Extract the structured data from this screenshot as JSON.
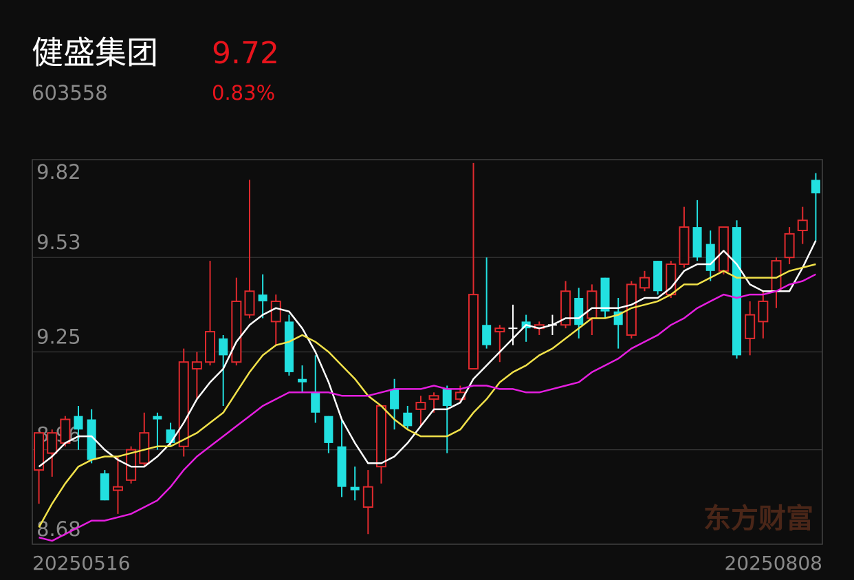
{
  "header": {
    "name": "健盛集团",
    "code": "603558",
    "price": "9.72",
    "change": "0.83%"
  },
  "chart_data": {
    "type": "candlestick",
    "categories": [
      "20250516",
      null,
      null,
      null,
      null,
      null,
      null,
      null,
      null,
      null,
      null,
      null,
      null,
      null,
      null,
      null,
      null,
      null,
      null,
      null,
      null,
      null,
      null,
      null,
      null,
      null,
      null,
      null,
      null,
      null,
      null,
      null,
      null,
      null,
      null,
      null,
      null,
      null,
      null,
      null,
      null,
      null,
      null,
      null,
      null,
      null,
      null,
      null,
      null,
      null,
      null,
      null,
      null,
      null,
      null,
      null,
      null,
      null,
      null,
      "20250808"
    ],
    "open": [
      8.9,
      8.95,
      8.98,
      9.06,
      9.05,
      8.89,
      8.84,
      8.87,
      8.92,
      9.06,
      9.02,
      8.97,
      9.2,
      9.22,
      9.29,
      9.22,
      9.36,
      9.42,
      9.34,
      9.34,
      9.17,
      9.13,
      9.06,
      8.97,
      8.85,
      8.79,
      8.91,
      9.14,
      9.07,
      9.08,
      9.11,
      9.14,
      9.11,
      9.2,
      9.33,
      9.31,
      9.32,
      9.34,
      9.32,
      9.33,
      9.33,
      9.41,
      9.35,
      9.47,
      9.37,
      9.3,
      9.44,
      9.52,
      9.42,
      9.51,
      9.62,
      9.57,
      9.49,
      9.62,
      9.29,
      9.34,
      9.43,
      9.53,
      9.61,
      9.76
    ],
    "high": [
      9.01,
      9.02,
      9.06,
      9.09,
      9.08,
      8.9,
      8.94,
      8.97,
      9.07,
      9.07,
      9.04,
      9.26,
      9.25,
      9.52,
      9.3,
      9.47,
      9.76,
      9.48,
      9.42,
      9.36,
      9.21,
      9.24,
      9.06,
      9.05,
      8.91,
      8.9,
      9.09,
      9.17,
      9.09,
      9.12,
      9.13,
      9.15,
      9.15,
      9.81,
      9.53,
      9.33,
      9.39,
      9.36,
      9.34,
      9.36,
      9.46,
      9.44,
      9.45,
      9.47,
      9.41,
      9.46,
      9.49,
      9.52,
      9.52,
      9.68,
      9.7,
      9.61,
      9.62,
      9.64,
      9.4,
      9.43,
      9.53,
      9.62,
      9.68,
      9.78
    ],
    "low": [
      8.8,
      8.88,
      8.97,
      8.96,
      8.92,
      8.81,
      8.77,
      8.86,
      8.91,
      8.96,
      8.97,
      8.94,
      9.11,
      9.21,
      9.09,
      9.21,
      9.35,
      9.35,
      9.27,
      9.18,
      9.13,
      9.04,
      8.95,
      8.82,
      8.81,
      8.71,
      8.86,
      9.02,
      9.02,
      9.03,
      9.07,
      8.95,
      9.1,
      9.2,
      9.26,
      9.22,
      9.27,
      9.28,
      9.3,
      9.3,
      9.32,
      9.29,
      9.3,
      9.35,
      9.26,
      9.29,
      9.43,
      9.42,
      9.41,
      9.5,
      9.52,
      9.46,
      9.48,
      9.23,
      9.24,
      9.29,
      9.38,
      9.51,
      9.57,
      9.58
    ],
    "close": [
      9.01,
      9.01,
      9.05,
      9.02,
      8.93,
      8.81,
      8.85,
      8.96,
      9.01,
      9.05,
      8.98,
      9.22,
      9.22,
      9.31,
      9.24,
      9.4,
      9.43,
      9.4,
      9.4,
      9.19,
      9.16,
      9.07,
      8.98,
      8.85,
      8.84,
      8.85,
      9.09,
      9.08,
      9.03,
      9.1,
      9.12,
      9.09,
      9.13,
      9.42,
      9.27,
      9.32,
      9.32,
      9.32,
      9.33,
      9.33,
      9.43,
      9.33,
      9.43,
      9.37,
      9.33,
      9.45,
      9.47,
      9.43,
      9.51,
      9.62,
      9.53,
      9.49,
      9.62,
      9.24,
      9.36,
      9.4,
      9.52,
      9.6,
      9.64,
      9.72
    ],
    "up_color": "#e02a2e",
    "down_color": "#22e0e0",
    "flat_color": "#ffffff",
    "lines": [
      {
        "color": "#ffffff",
        "values": [
          8.91,
          8.94,
          8.98,
          9.0,
          9.0,
          8.96,
          8.93,
          8.91,
          8.91,
          8.94,
          8.98,
          9.04,
          9.11,
          9.16,
          9.2,
          9.28,
          9.33,
          9.36,
          9.38,
          9.37,
          9.32,
          9.25,
          9.16,
          9.05,
          8.98,
          8.92,
          8.92,
          8.94,
          8.98,
          9.03,
          9.08,
          9.08,
          9.1,
          9.17,
          9.21,
          9.25,
          9.29,
          9.33,
          9.32,
          9.33,
          9.35,
          9.35,
          9.38,
          9.38,
          9.38,
          9.39,
          9.41,
          9.41,
          9.44,
          9.49,
          9.51,
          9.51,
          9.55,
          9.51,
          9.45,
          9.43,
          9.43,
          9.43,
          9.5,
          9.58
        ]
      },
      {
        "color": "#f2e24a",
        "values": [
          8.73,
          8.8,
          8.86,
          8.91,
          8.93,
          8.94,
          8.94,
          8.95,
          8.96,
          8.97,
          8.97,
          8.99,
          9.01,
          9.04,
          9.07,
          9.13,
          9.19,
          9.24,
          9.27,
          9.28,
          9.3,
          9.28,
          9.25,
          9.21,
          9.17,
          9.12,
          9.09,
          9.05,
          9.02,
          9.0,
          9.0,
          9.0,
          9.02,
          9.07,
          9.11,
          9.16,
          9.19,
          9.21,
          9.24,
          9.26,
          9.29,
          9.32,
          9.35,
          9.35,
          9.36,
          9.38,
          9.39,
          9.4,
          9.42,
          9.45,
          9.45,
          9.47,
          9.49,
          9.47,
          9.47,
          9.47,
          9.47,
          9.49,
          9.5,
          9.51
        ]
      },
      {
        "color": "#e61ee0",
        "values": [
          8.7,
          8.69,
          8.71,
          8.73,
          8.75,
          8.75,
          8.76,
          8.77,
          8.79,
          8.81,
          8.85,
          8.9,
          8.94,
          8.97,
          9.0,
          9.03,
          9.06,
          9.09,
          9.11,
          9.13,
          9.13,
          9.13,
          9.13,
          9.12,
          9.12,
          9.12,
          9.13,
          9.14,
          9.14,
          9.14,
          9.15,
          9.14,
          9.14,
          9.15,
          9.15,
          9.14,
          9.14,
          9.13,
          9.13,
          9.14,
          9.15,
          9.16,
          9.19,
          9.21,
          9.23,
          9.26,
          9.28,
          9.3,
          9.33,
          9.35,
          9.38,
          9.4,
          9.42,
          9.41,
          9.42,
          9.42,
          9.43,
          9.45,
          9.46,
          9.48
        ]
      }
    ],
    "ylim": [
      8.68,
      9.82
    ],
    "yticks": [
      9.82,
      9.53,
      9.25,
      8.96,
      8.68
    ],
    "grid": true,
    "watermark": "东方财富"
  }
}
